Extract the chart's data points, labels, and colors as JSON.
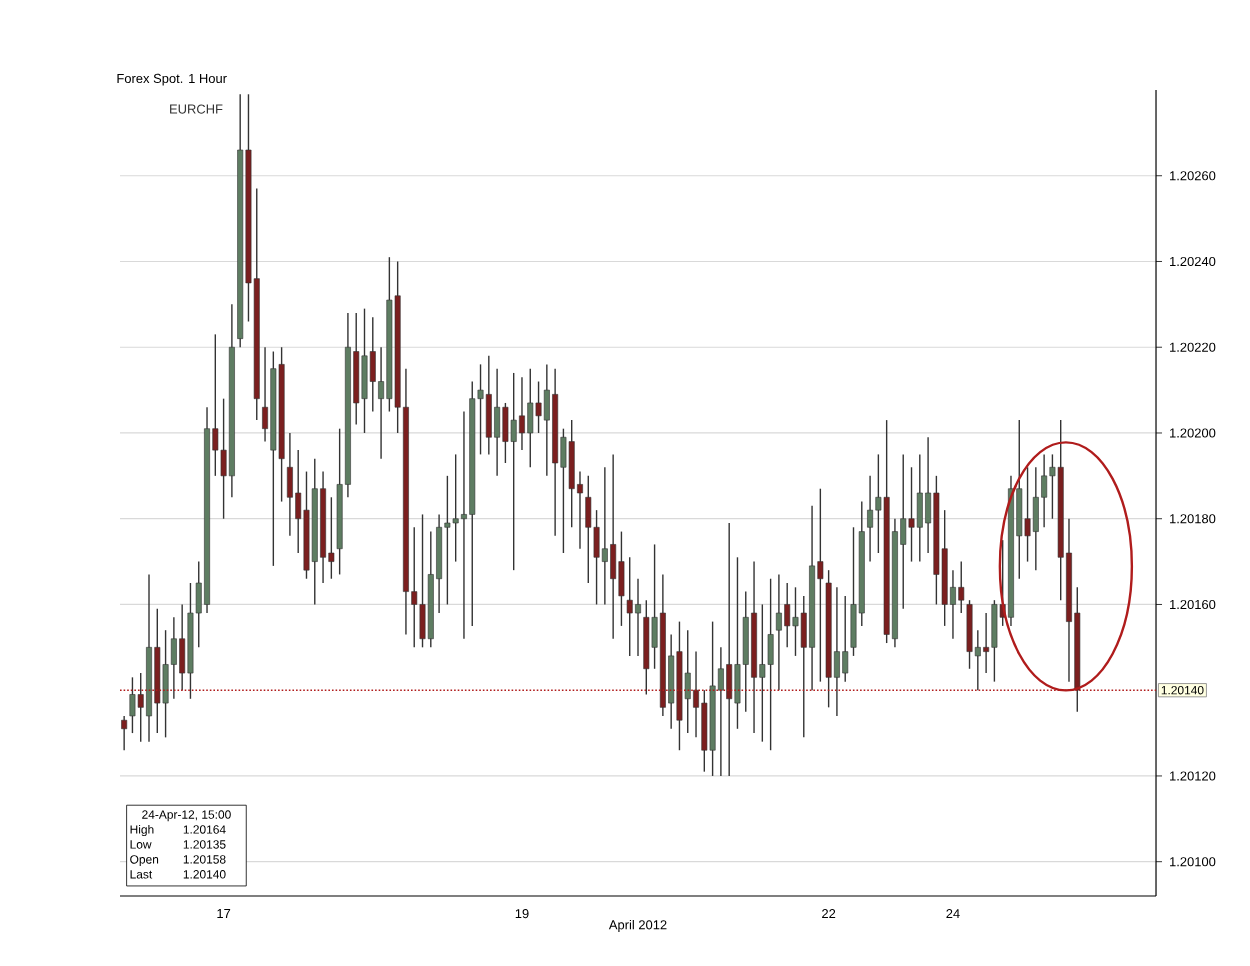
{
  "chart_data": {
    "type": "candlestick",
    "title": "Forex Spot. 1 Hour",
    "xlabel": "April 2012",
    "categories": [
      null,
      null,
      null,
      null,
      null,
      null,
      null,
      null,
      null,
      null,
      null,
      null,
      "17",
      null,
      null,
      null,
      null,
      null,
      null,
      null,
      null,
      null,
      null,
      null,
      null,
      null,
      null,
      null,
      null,
      null,
      null,
      null,
      null,
      null,
      null,
      null,
      null,
      null,
      null,
      null,
      null,
      null,
      null,
      null,
      null,
      null,
      null,
      null,
      "19",
      null,
      null,
      null,
      null,
      null,
      null,
      null,
      null,
      null,
      null,
      null,
      null,
      null,
      null,
      null,
      null,
      null,
      null,
      null,
      null,
      null,
      null,
      null,
      null,
      null,
      null,
      null,
      null,
      null,
      null,
      null,
      null,
      null,
      null,
      null,
      null,
      "22",
      null,
      null,
      null,
      null,
      null,
      null,
      null,
      null,
      null,
      null,
      null,
      null,
      null,
      null,
      "24",
      null,
      null,
      null,
      null,
      null,
      null,
      null,
      null,
      null,
      null,
      null,
      null,
      null,
      null,
      null,
      null,
      null,
      null,
      null,
      null,
      null,
      null,
      null,
      null
    ],
    "series": [
      {
        "name": "EURCHF",
        "color": "#333333",
        "ohlc": [
          [
            1.20133,
            1.20134,
            1.20126,
            1.20131
          ],
          [
            1.20134,
            1.20143,
            1.2013,
            1.20139
          ],
          [
            1.20139,
            1.20144,
            1.20128,
            1.20136
          ],
          [
            1.20134,
            1.20167,
            1.20128,
            1.2015
          ],
          [
            1.2015,
            1.20159,
            1.2013,
            1.20137
          ],
          [
            1.20137,
            1.20154,
            1.20129,
            1.20146
          ],
          [
            1.20146,
            1.20157,
            1.20138,
            1.20152
          ],
          [
            1.20152,
            1.2016,
            1.2014,
            1.20144
          ],
          [
            1.20144,
            1.20165,
            1.20138,
            1.20158
          ],
          [
            1.20158,
            1.2017,
            1.2015,
            1.20165
          ],
          [
            1.2016,
            1.20206,
            1.20158,
            1.20201
          ],
          [
            1.20201,
            1.20223,
            1.2019,
            1.20196
          ],
          [
            1.20196,
            1.20208,
            1.2018,
            1.2019
          ],
          [
            1.2019,
            1.2023,
            1.20185,
            1.2022
          ],
          [
            1.20222,
            1.20279,
            1.2022,
            1.20266
          ],
          [
            1.20266,
            1.20279,
            1.20226,
            1.20235
          ],
          [
            1.20236,
            1.20257,
            1.20203,
            1.20208
          ],
          [
            1.20206,
            1.2022,
            1.20198,
            1.20201
          ],
          [
            1.20196,
            1.20219,
            1.20169,
            1.20215
          ],
          [
            1.20216,
            1.2022,
            1.20184,
            1.20194
          ],
          [
            1.20192,
            1.202,
            1.20176,
            1.20185
          ],
          [
            1.20186,
            1.20196,
            1.20172,
            1.2018
          ],
          [
            1.20182,
            1.20191,
            1.20166,
            1.20168
          ],
          [
            1.2017,
            1.20194,
            1.2016,
            1.20187
          ],
          [
            1.20187,
            1.20191,
            1.20165,
            1.20171
          ],
          [
            1.20172,
            1.20185,
            1.20166,
            1.2017
          ],
          [
            1.20173,
            1.20201,
            1.20167,
            1.20188
          ],
          [
            1.20188,
            1.20228,
            1.20185,
            1.2022
          ],
          [
            1.20219,
            1.20228,
            1.20202,
            1.20207
          ],
          [
            1.20208,
            1.20229,
            1.202,
            1.20218
          ],
          [
            1.20219,
            1.20227,
            1.20205,
            1.20212
          ],
          [
            1.20208,
            1.2022,
            1.20194,
            1.20212
          ],
          [
            1.20208,
            1.20241,
            1.20205,
            1.20231
          ],
          [
            1.20232,
            1.2024,
            1.202,
            1.20206
          ],
          [
            1.20206,
            1.20215,
            1.20153,
            1.20163
          ],
          [
            1.20163,
            1.20178,
            1.2015,
            1.2016
          ],
          [
            1.2016,
            1.20181,
            1.2015,
            1.20152
          ],
          [
            1.20152,
            1.20177,
            1.2015,
            1.20167
          ],
          [
            1.20166,
            1.20181,
            1.20158,
            1.20178
          ],
          [
            1.20178,
            1.2019,
            1.2016,
            1.20179
          ],
          [
            1.20179,
            1.20195,
            1.2017,
            1.2018
          ],
          [
            1.2018,
            1.20205,
            1.20152,
            1.20181
          ],
          [
            1.20181,
            1.20212,
            1.20155,
            1.20208
          ],
          [
            1.20208,
            1.20216,
            1.20195,
            1.2021
          ],
          [
            1.20209,
            1.20218,
            1.20195,
            1.20199
          ],
          [
            1.20199,
            1.20215,
            1.2019,
            1.20206
          ],
          [
            1.20206,
            1.20207,
            1.20193,
            1.20198
          ],
          [
            1.20198,
            1.20214,
            1.20168,
            1.20203
          ],
          [
            1.20204,
            1.20213,
            1.20196,
            1.202
          ],
          [
            1.202,
            1.20215,
            1.20192,
            1.20207
          ],
          [
            1.20207,
            1.20212,
            1.202,
            1.20204
          ],
          [
            1.20203,
            1.20216,
            1.2019,
            1.2021
          ],
          [
            1.20209,
            1.20215,
            1.20176,
            1.20193
          ],
          [
            1.20192,
            1.20201,
            1.20172,
            1.20199
          ],
          [
            1.20198,
            1.20203,
            1.20178,
            1.20187
          ],
          [
            1.20188,
            1.20191,
            1.20173,
            1.20186
          ],
          [
            1.20185,
            1.2019,
            1.20165,
            1.20178
          ],
          [
            1.20178,
            1.20182,
            1.2016,
            1.20171
          ],
          [
            1.2017,
            1.20192,
            1.2016,
            1.20173
          ],
          [
            1.20174,
            1.20195,
            1.20152,
            1.20166
          ],
          [
            1.2017,
            1.20177,
            1.20155,
            1.20162
          ],
          [
            1.20161,
            1.20171,
            1.20148,
            1.20158
          ],
          [
            1.20158,
            1.20166,
            1.20148,
            1.2016
          ],
          [
            1.20157,
            1.20161,
            1.20139,
            1.20145
          ],
          [
            1.2015,
            1.20174,
            1.20145,
            1.20157
          ],
          [
            1.20158,
            1.20167,
            1.20134,
            1.20136
          ],
          [
            1.20137,
            1.20153,
            1.20131,
            1.20148
          ],
          [
            1.20149,
            1.20156,
            1.20126,
            1.20133
          ],
          [
            1.20138,
            1.20154,
            1.2013,
            1.20144
          ],
          [
            1.2014,
            1.20149,
            1.20129,
            1.20136
          ],
          [
            1.20137,
            1.2014,
            1.20121,
            1.20126
          ],
          [
            1.20126,
            1.20156,
            1.2012,
            1.20141
          ],
          [
            1.2014,
            1.2015,
            1.2012,
            1.20145
          ],
          [
            1.20146,
            1.20179,
            1.2012,
            1.20138
          ],
          [
            1.20137,
            1.20171,
            1.20131,
            1.20146
          ],
          [
            1.20146,
            1.20163,
            1.20135,
            1.20157
          ],
          [
            1.20158,
            1.2017,
            1.2013,
            1.20143
          ],
          [
            1.20143,
            1.2016,
            1.20128,
            1.20146
          ],
          [
            1.20146,
            1.20166,
            1.20126,
            1.20153
          ],
          [
            1.20154,
            1.20167,
            1.2014,
            1.20158
          ],
          [
            1.2016,
            1.20165,
            1.2015,
            1.20155
          ],
          [
            1.20155,
            1.20164,
            1.20148,
            1.20157
          ],
          [
            1.20158,
            1.20162,
            1.20129,
            1.2015
          ],
          [
            1.2015,
            1.20183,
            1.2014,
            1.20169
          ],
          [
            1.2017,
            1.20187,
            1.20142,
            1.20166
          ],
          [
            1.20165,
            1.20168,
            1.20136,
            1.20143
          ],
          [
            1.20143,
            1.20164,
            1.20134,
            1.20149
          ],
          [
            1.20144,
            1.20162,
            1.20142,
            1.20149
          ],
          [
            1.2015,
            1.20178,
            1.20148,
            1.2016
          ],
          [
            1.20158,
            1.20184,
            1.20155,
            1.20177
          ],
          [
            1.20178,
            1.2019,
            1.2017,
            1.20182
          ],
          [
            1.20182,
            1.20195,
            1.20172,
            1.20185
          ],
          [
            1.20185,
            1.20203,
            1.20151,
            1.20153
          ],
          [
            1.20152,
            1.2018,
            1.2015,
            1.20177
          ],
          [
            1.20174,
            1.20195,
            1.20159,
            1.2018
          ],
          [
            1.2018,
            1.20192,
            1.2017,
            1.20178
          ],
          [
            1.20178,
            1.20195,
            1.2017,
            1.20186
          ],
          [
            1.20179,
            1.20199,
            1.20172,
            1.20186
          ],
          [
            1.20186,
            1.2019,
            1.2016,
            1.20167
          ],
          [
            1.20173,
            1.20182,
            1.20155,
            1.2016
          ],
          [
            1.2016,
            1.20168,
            1.20152,
            1.20164
          ],
          [
            1.20164,
            1.2017,
            1.20158,
            1.20161
          ],
          [
            1.2016,
            1.20161,
            1.20145,
            1.20149
          ],
          [
            1.20148,
            1.20154,
            1.2014,
            1.2015
          ],
          [
            1.2015,
            1.20158,
            1.20144,
            1.20149
          ],
          [
            1.2015,
            1.20161,
            1.20142,
            1.2016
          ],
          [
            1.2016,
            1.20175,
            1.20155,
            1.20157
          ],
          [
            1.20157,
            1.2019,
            1.20155,
            1.20187
          ],
          [
            1.20176,
            1.20203,
            1.20166,
            1.20187
          ],
          [
            1.2018,
            1.20192,
            1.2017,
            1.20176
          ],
          [
            1.20177,
            1.20192,
            1.20168,
            1.20185
          ],
          [
            1.20185,
            1.20195,
            1.20178,
            1.2019
          ],
          [
            1.2019,
            1.20195,
            1.2018,
            1.20192
          ],
          [
            1.20192,
            1.20203,
            1.20161,
            1.20171
          ],
          [
            1.20172,
            1.2018,
            1.20142,
            1.20156
          ],
          [
            1.20158,
            1.20164,
            1.20135,
            1.2014
          ],
          null,
          null,
          null,
          null,
          null,
          null,
          null,
          null,
          null
        ],
        "colors": [
          "#7b1f1f",
          "#5e7d62",
          "#7b1f1f",
          "#5e7d62",
          "#7b1f1f",
          "#5e7d62",
          "#5e7d62",
          "#7b1f1f",
          "#5e7d62",
          "#5e7d62",
          "#5e7d62",
          "#7b1f1f",
          "#7b1f1f",
          "#5e7d62",
          "#5e7d62",
          "#7b1f1f",
          "#7b1f1f",
          "#7b1f1f",
          "#5e7d62",
          "#7b1f1f",
          "#7b1f1f",
          "#7b1f1f",
          "#7b1f1f",
          "#5e7d62",
          "#7b1f1f",
          "#7b1f1f",
          "#5e7d62",
          "#5e7d62",
          "#7b1f1f",
          "#5e7d62",
          "#7b1f1f",
          "#5e7d62",
          "#5e7d62",
          "#7b1f1f",
          "#7b1f1f",
          "#7b1f1f",
          "#7b1f1f",
          "#5e7d62",
          "#5e7d62",
          "#5e7d62",
          "#5e7d62",
          "#5e7d62",
          "#5e7d62",
          "#5e7d62",
          "#7b1f1f",
          "#5e7d62",
          "#7b1f1f",
          "#5e7d62",
          "#7b1f1f",
          "#5e7d62",
          "#7b1f1f",
          "#5e7d62",
          "#7b1f1f",
          "#5e7d62",
          "#7b1f1f",
          "#7b1f1f",
          "#7b1f1f",
          "#7b1f1f",
          "#5e7d62",
          "#7b1f1f",
          "#7b1f1f",
          "#7b1f1f",
          "#5e7d62",
          "#7b1f1f",
          "#5e7d62",
          "#7b1f1f",
          "#5e7d62",
          "#7b1f1f",
          "#5e7d62",
          "#7b1f1f",
          "#7b1f1f",
          "#5e7d62",
          "#5e7d62",
          "#7b1f1f",
          "#5e7d62",
          "#5e7d62",
          "#7b1f1f",
          "#5e7d62",
          "#5e7d62",
          "#5e7d62",
          "#7b1f1f",
          "#5e7d62",
          "#7b1f1f",
          "#5e7d62",
          "#7b1f1f",
          "#7b1f1f",
          "#5e7d62",
          "#5e7d62",
          "#5e7d62",
          "#5e7d62",
          "#5e7d62",
          "#5e7d62",
          "#7b1f1f",
          "#5e7d62",
          "#5e7d62",
          "#7b1f1f",
          "#5e7d62",
          "#5e7d62",
          "#7b1f1f",
          "#7b1f1f",
          "#5e7d62",
          "#7b1f1f",
          "#7b1f1f",
          "#5e7d62",
          "#7b1f1f",
          "#5e7d62",
          "#7b1f1f",
          "#5e7d62",
          "#5e7d62",
          "#7b1f1f",
          "#5e7d62",
          "#5e7d62",
          "#5e7d62",
          "#7b1f1f",
          "#7b1f1f",
          "#7b1f1f",
          null,
          null,
          null,
          null,
          null,
          null,
          null,
          null,
          null
        ]
      }
    ],
    "ylim": [
      1.20092,
      1.2028
    ],
    "yticks": [
      {
        "value": 1.201,
        "label": "1.20100"
      },
      {
        "value": 1.2012,
        "label": "1.20120"
      },
      {
        "value": 1.2016,
        "label": "1.20160"
      },
      {
        "value": 1.2018,
        "label": "1.20180"
      },
      {
        "value": 1.202,
        "label": "1.20200"
      },
      {
        "value": 1.2022,
        "label": "1.20220"
      },
      {
        "value": 1.2024,
        "label": "1.20240"
      },
      {
        "value": 1.2026,
        "label": "1.20260"
      }
    ],
    "grid": "y",
    "legend": "top left",
    "ref_lines": [
      {
        "axis": "y",
        "value": 1.2014,
        "label": "1.20140",
        "color": "#b01c1c",
        "line_style": "dotted"
      }
    ],
    "annotations": [
      "24-Apr-12, 15:00",
      "High",
      "1.20164",
      "Low",
      "1.20135",
      "Open",
      "1.20158",
      "Last",
      "1.20140"
    ]
  }
}
